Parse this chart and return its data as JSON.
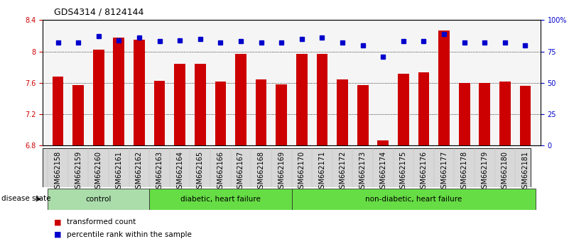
{
  "title": "GDS4314 / 8124144",
  "samples": [
    "GSM662158",
    "GSM662159",
    "GSM662160",
    "GSM662161",
    "GSM662162",
    "GSM662163",
    "GSM662164",
    "GSM662165",
    "GSM662166",
    "GSM662167",
    "GSM662168",
    "GSM662169",
    "GSM662170",
    "GSM662171",
    "GSM662172",
    "GSM662173",
    "GSM662174",
    "GSM662175",
    "GSM662176",
    "GSM662177",
    "GSM662178",
    "GSM662179",
    "GSM662180",
    "GSM662181"
  ],
  "bar_values": [
    7.68,
    7.57,
    8.02,
    8.18,
    8.15,
    7.63,
    7.84,
    7.84,
    7.62,
    7.97,
    7.64,
    7.58,
    7.97,
    7.97,
    7.64,
    7.57,
    6.87,
    7.72,
    7.73,
    8.27,
    7.6,
    7.6,
    7.62,
    7.56
  ],
  "dot_values": [
    82,
    82,
    87,
    84,
    86,
    83,
    84,
    85,
    82,
    83,
    82,
    82,
    85,
    86,
    82,
    80,
    71,
    83,
    83,
    89,
    82,
    82,
    82,
    80
  ],
  "bar_color": "#cc0000",
  "dot_color": "#0000cc",
  "ylim_left": [
    6.8,
    8.4
  ],
  "ylim_right": [
    0,
    100
  ],
  "yticks_left": [
    6.8,
    7.2,
    7.6,
    8.0,
    8.4
  ],
  "ytick_labels_left": [
    "6.8",
    "7.2",
    "7.6",
    "8",
    "8.4"
  ],
  "yticks_right": [
    0,
    25,
    50,
    75,
    100
  ],
  "ytick_labels_right": [
    "0",
    "25",
    "50",
    "75",
    "100%"
  ],
  "gridlines": [
    7.2,
    7.6,
    8.0
  ],
  "groups": [
    {
      "label": "control",
      "start": 0,
      "end": 5
    },
    {
      "label": "diabetic, heart failure",
      "start": 5,
      "end": 12
    },
    {
      "label": "non-diabetic, heart failure",
      "start": 12,
      "end": 24
    }
  ],
  "group_colors": [
    "#aaddaa",
    "#66dd44",
    "#66dd44"
  ],
  "disease_state_label": "disease state",
  "legend_bar_label": "transformed count",
  "legend_dot_label": "percentile rank within the sample",
  "bg_color": "#ffffff",
  "bar_label_color": "#cc0000",
  "dot_label_color": "#0000cc",
  "title_fontsize": 9,
  "axis_fontsize": 7.5,
  "tick_fontsize": 7,
  "group_fontsize": 7.5
}
